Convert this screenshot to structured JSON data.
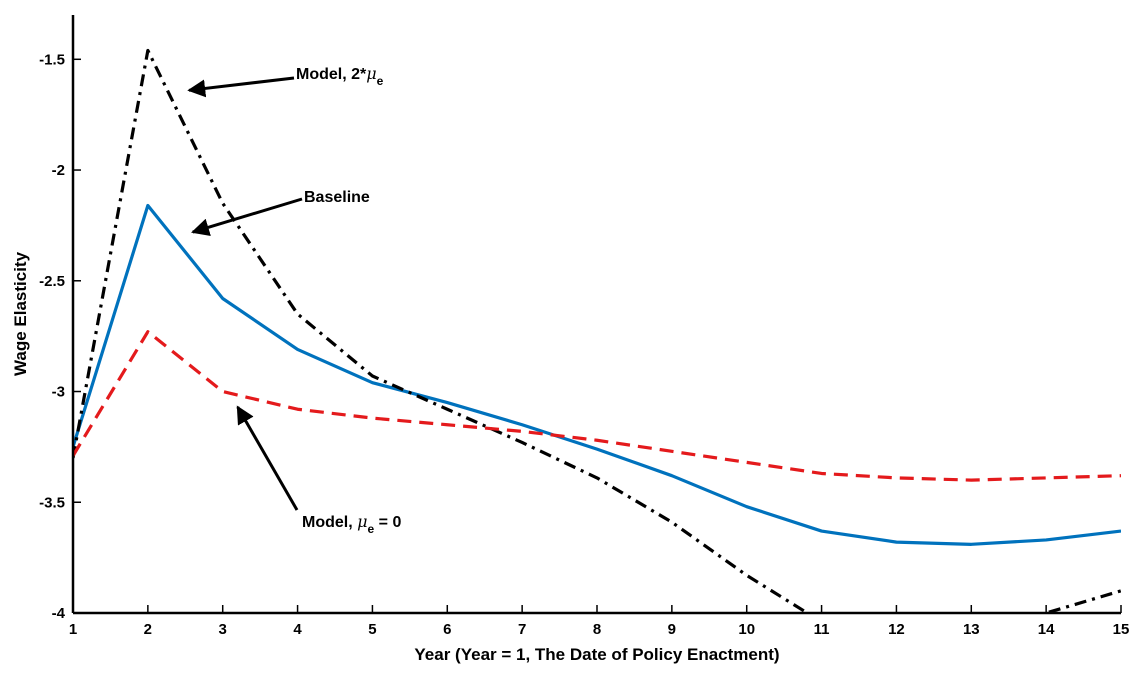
{
  "chart_data": {
    "type": "line",
    "title": "",
    "xlabel": "Year  (Year = 1, The Date of Policy Enactment)",
    "ylabel": "Wage Elasticity",
    "xlim": [
      1,
      15
    ],
    "ylim": [
      -4,
      -1.3
    ],
    "xticks": [
      "1",
      "2",
      "3",
      "4",
      "5",
      "6",
      "7",
      "8",
      "9",
      "10",
      "11",
      "12",
      "13",
      "14",
      "15"
    ],
    "yticks": [
      "-1.5",
      "-2",
      "-2.5",
      "-3",
      "-3.5",
      "-4"
    ],
    "grid": false,
    "legend": "none",
    "x": [
      1,
      2,
      3,
      4,
      5,
      6,
      7,
      8,
      9,
      10,
      11,
      12,
      13,
      14,
      15
    ],
    "series": [
      {
        "key": "baseline",
        "color": "#0072BD",
        "style": "solid",
        "values": [
          -3.25,
          -2.16,
          -2.58,
          -2.81,
          -2.96,
          -3.05,
          -3.15,
          -3.26,
          -3.38,
          -3.52,
          -3.63,
          -3.68,
          -3.69,
          -3.67,
          -3.63
        ]
      },
      {
        "key": "model_2mu",
        "color": "#000000",
        "style": "dashdot",
        "values": [
          -3.3,
          -1.46,
          -2.15,
          -2.65,
          -2.93,
          -3.08,
          -3.23,
          -3.39,
          -3.59,
          -3.83,
          -4.04,
          -4.16,
          -4.12,
          -4.0,
          -3.9
        ]
      },
      {
        "key": "model_mu0",
        "color": "#E41A1C",
        "style": "dashed",
        "values": [
          -3.29,
          -2.73,
          -3.0,
          -3.08,
          -3.12,
          -3.15,
          -3.18,
          -3.22,
          -3.27,
          -3.32,
          -3.37,
          -3.39,
          -3.4,
          -3.39,
          -3.38
        ]
      }
    ],
    "annotations": [
      {
        "key": "model_2mu",
        "text_main": "Model, 2*",
        "text_mu": "μ",
        "text_sub": "e",
        "text_tail": "",
        "arrow_target": [
          2.55,
          -1.64
        ]
      },
      {
        "key": "baseline",
        "text_main": "Baseline",
        "text_mu": "",
        "text_sub": "",
        "text_tail": "",
        "arrow_target": [
          2.6,
          -2.28
        ]
      },
      {
        "key": "model_mu0",
        "text_main": "Model, ",
        "text_mu": "μ",
        "text_sub": "e",
        "text_tail": " = 0",
        "arrow_target": [
          3.2,
          -3.07
        ]
      }
    ]
  }
}
